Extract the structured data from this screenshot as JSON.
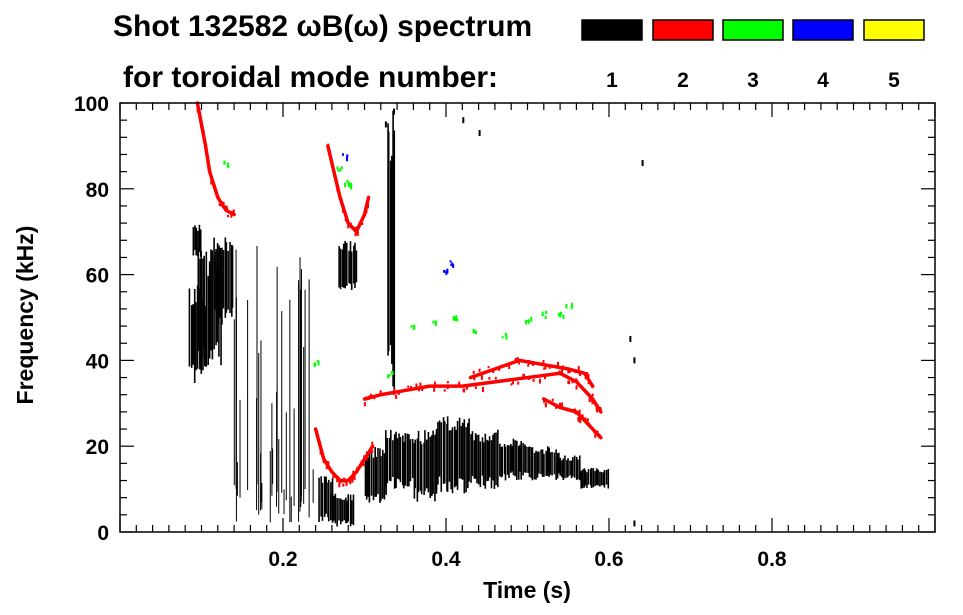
{
  "chart_data": {
    "type": "heatmap",
    "title_line1": "Shot 132582 ωB(ω) spectrum",
    "title_line2": "for toroidal mode number:",
    "xlabel": "Time (s)",
    "ylabel": "Frequency (kHz)",
    "xlim": [
      0,
      1.0
    ],
    "ylim": [
      0,
      100
    ],
    "xticks": [
      {
        "value": 0.2,
        "label": "0.2"
      },
      {
        "value": 0.4,
        "label": "0.4"
      },
      {
        "value": 0.6,
        "label": "0.6"
      },
      {
        "value": 0.8,
        "label": "0.8"
      }
    ],
    "yticks": [
      {
        "value": 0,
        "label": "0"
      },
      {
        "value": 20,
        "label": "20"
      },
      {
        "value": 40,
        "label": "40"
      },
      {
        "value": 60,
        "label": "60"
      },
      {
        "value": 80,
        "label": "80"
      },
      {
        "value": 100,
        "label": "100"
      }
    ],
    "legend": [
      {
        "label": "1",
        "color": "#000000"
      },
      {
        "label": "2",
        "color": "#ff0000"
      },
      {
        "label": "3",
        "color": "#00ff00"
      },
      {
        "label": "4",
        "color": "#0000ff"
      },
      {
        "label": "5",
        "color": "#ffff00"
      }
    ],
    "series": [
      {
        "name": "n=1",
        "color": "#000000",
        "blobs": [
          {
            "t0": 0.085,
            "t1": 0.105,
            "f0": 34,
            "f1": 58
          },
          {
            "t0": 0.095,
            "t1": 0.125,
            "f0": 38,
            "f1": 66
          },
          {
            "t0": 0.115,
            "t1": 0.14,
            "f0": 48,
            "f1": 70
          },
          {
            "t0": 0.09,
            "t1": 0.1,
            "f0": 64,
            "f1": 72
          },
          {
            "t0": 0.244,
            "t1": 0.262,
            "f0": 2,
            "f1": 13
          },
          {
            "t0": 0.258,
            "t1": 0.288,
            "f0": 1,
            "f1": 9
          },
          {
            "t0": 0.268,
            "t1": 0.292,
            "f0": 56,
            "f1": 68
          },
          {
            "t0": 0.3,
            "t1": 0.328,
            "f0": 6,
            "f1": 20
          },
          {
            "t0": 0.326,
            "t1": 0.36,
            "f0": 10,
            "f1": 24
          },
          {
            "t0": 0.36,
            "t1": 0.39,
            "f0": 7,
            "f1": 24
          },
          {
            "t0": 0.388,
            "t1": 0.43,
            "f0": 9,
            "f1": 27
          },
          {
            "t0": 0.43,
            "t1": 0.465,
            "f0": 10,
            "f1": 24
          },
          {
            "t0": 0.465,
            "t1": 0.5,
            "f0": 12,
            "f1": 22
          },
          {
            "t0": 0.5,
            "t1": 0.54,
            "f0": 12,
            "f1": 20
          },
          {
            "t0": 0.54,
            "t1": 0.565,
            "f0": 12,
            "f1": 18
          },
          {
            "t0": 0.565,
            "t1": 0.6,
            "f0": 10,
            "f1": 15
          },
          {
            "t0": 0.328,
            "t1": 0.338,
            "f0": 30,
            "f1": 100
          }
        ]
      },
      {
        "name": "n=2",
        "color": "#ff0000",
        "traces": [
          [
            [
              0.095,
              100
            ],
            [
              0.1,
              95
            ],
            [
              0.105,
              90
            ],
            [
              0.11,
              84
            ],
            [
              0.12,
              78
            ],
            [
              0.13,
              75
            ],
            [
              0.14,
              74
            ]
          ],
          [
            [
              0.255,
              90
            ],
            [
              0.27,
              78
            ],
            [
              0.28,
              72
            ],
            [
              0.29,
              70
            ],
            [
              0.3,
              74
            ],
            [
              0.305,
              78
            ]
          ],
          [
            [
              0.24,
              24
            ],
            [
              0.25,
              17
            ],
            [
              0.26,
              14
            ],
            [
              0.27,
              12
            ],
            [
              0.28,
              12
            ],
            [
              0.29,
              14
            ],
            [
              0.3,
              17
            ],
            [
              0.31,
              20
            ]
          ],
          [
            [
              0.3,
              31
            ],
            [
              0.32,
              32
            ],
            [
              0.35,
              33
            ],
            [
              0.38,
              34
            ],
            [
              0.42,
              34
            ],
            [
              0.46,
              35
            ],
            [
              0.5,
              36
            ],
            [
              0.54,
              37
            ],
            [
              0.56,
              35
            ],
            [
              0.58,
              31
            ],
            [
              0.59,
              28
            ]
          ],
          [
            [
              0.43,
              36
            ],
            [
              0.46,
              38
            ],
            [
              0.49,
              40
            ],
            [
              0.52,
              39
            ],
            [
              0.55,
              38
            ],
            [
              0.57,
              37
            ],
            [
              0.58,
              34
            ]
          ],
          [
            [
              0.52,
              31
            ],
            [
              0.54,
              29
            ],
            [
              0.56,
              28
            ],
            [
              0.57,
              26
            ],
            [
              0.58,
              24
            ],
            [
              0.59,
              22
            ]
          ]
        ]
      },
      {
        "name": "n=3",
        "color": "#00ff00",
        "spots": [
          [
            0.13,
            86
          ],
          [
            0.268,
            85
          ],
          [
            0.278,
            82
          ],
          [
            0.282,
            81
          ],
          [
            0.36,
            48
          ],
          [
            0.385,
            49
          ],
          [
            0.41,
            50
          ],
          [
            0.435,
            47
          ],
          [
            0.47,
            46
          ],
          [
            0.5,
            50
          ],
          [
            0.52,
            51
          ],
          [
            0.54,
            51
          ],
          [
            0.55,
            53
          ],
          [
            0.24,
            40
          ],
          [
            0.33,
            37
          ]
        ]
      },
      {
        "name": "n=4",
        "color": "#0000ff",
        "spots": [
          [
            0.275,
            88
          ],
          [
            0.405,
            63
          ],
          [
            0.4,
            61
          ]
        ]
      }
    ]
  }
}
